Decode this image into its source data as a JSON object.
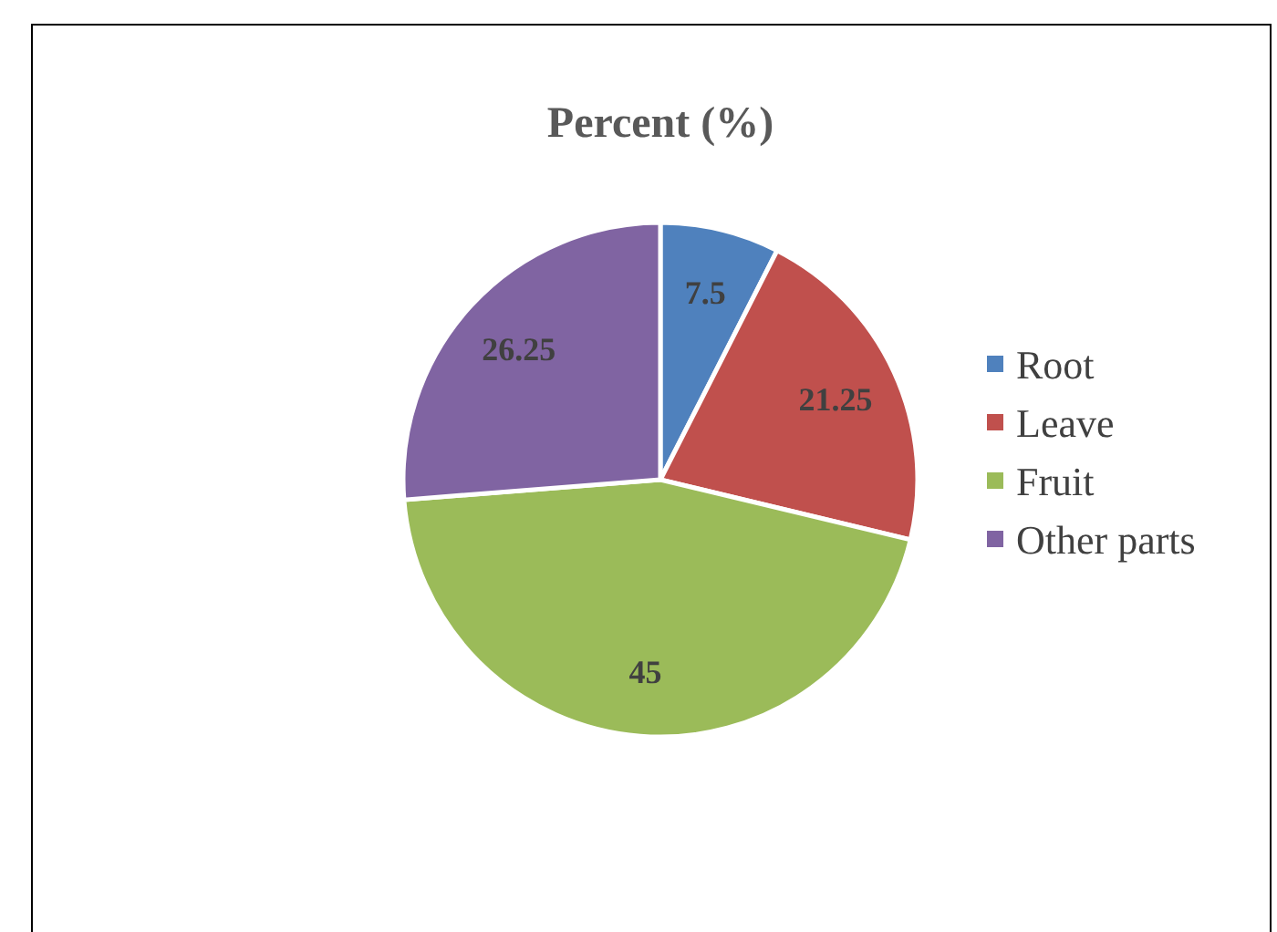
{
  "chart_data": {
    "type": "pie",
    "title": "Percent (%)",
    "categories": [
      "Root",
      "Leave",
      "Fruit",
      "Other parts"
    ],
    "values": [
      7.5,
      21.25,
      45,
      26.25
    ],
    "colors": [
      "#4f81bd",
      "#c0504d",
      "#9bbb59",
      "#8064a2"
    ],
    "data_labels": true,
    "legend": "right"
  }
}
